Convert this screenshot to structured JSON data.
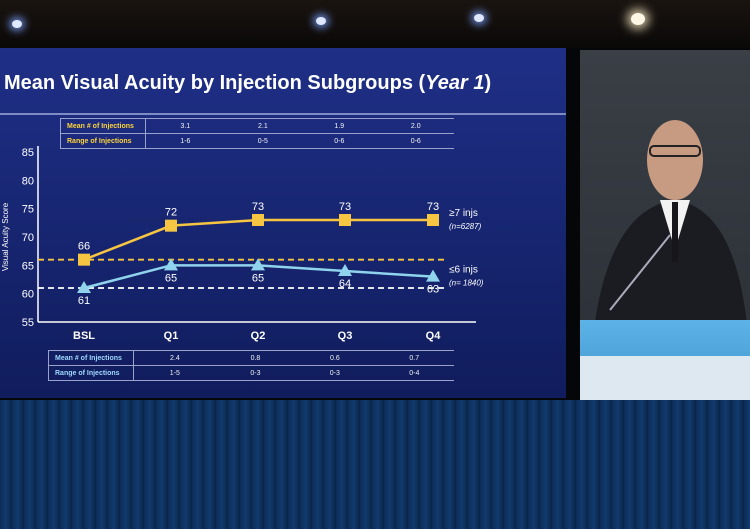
{
  "slide": {
    "title_main": "Mean Visual Acuity by Injection Subgroups (",
    "title_italic": "Year 1",
    "title_end": ")"
  },
  "top_table": {
    "rows": [
      {
        "label": "Mean # of Injections",
        "values": [
          "3.1",
          "2.1",
          "1.9",
          "2.0"
        ]
      },
      {
        "label": "Range of Injections",
        "values": [
          "1-6",
          "0-5",
          "0-6",
          "0-6"
        ]
      }
    ]
  },
  "bottom_table": {
    "rows": [
      {
        "label": "Mean # of Injections",
        "values": [
          "2.4",
          "0.8",
          "0.6",
          "0.7"
        ]
      },
      {
        "label": "Range of Injections",
        "values": [
          "1-5",
          "0-3",
          "0-3",
          "0-4"
        ]
      }
    ]
  },
  "chart_data": {
    "type": "line",
    "title": "Mean Visual Acuity by Injection Subgroups (Year 1)",
    "ylabel": "Visual Acuity Score",
    "xlabel": "",
    "categories": [
      "BSL",
      "Q1",
      "Q2",
      "Q3",
      "Q4"
    ],
    "ylim": [
      55,
      85
    ],
    "yticks": [
      55,
      60,
      65,
      70,
      75,
      80,
      85
    ],
    "series": [
      {
        "name": "≥7 injs",
        "n_label": "(n=6287)",
        "color": "#f6c542",
        "marker": "square",
        "values": [
          66,
          72,
          73,
          73,
          73
        ],
        "labels": [
          "66",
          "72",
          "73",
          "73",
          "73"
        ]
      },
      {
        "name": "≤6 injs",
        "n_label": "(n= 1840)",
        "color": "#8fd3ec",
        "marker": "triangle",
        "values": [
          61,
          65,
          65,
          64,
          63
        ],
        "labels": [
          "61",
          "65",
          "65",
          "64",
          "63"
        ]
      }
    ],
    "reference_lines": [
      {
        "value": 66,
        "color": "#f6c542",
        "style": "dashed"
      },
      {
        "value": 61,
        "color": "#ffffff",
        "style": "dashed"
      }
    ],
    "grid": false
  }
}
